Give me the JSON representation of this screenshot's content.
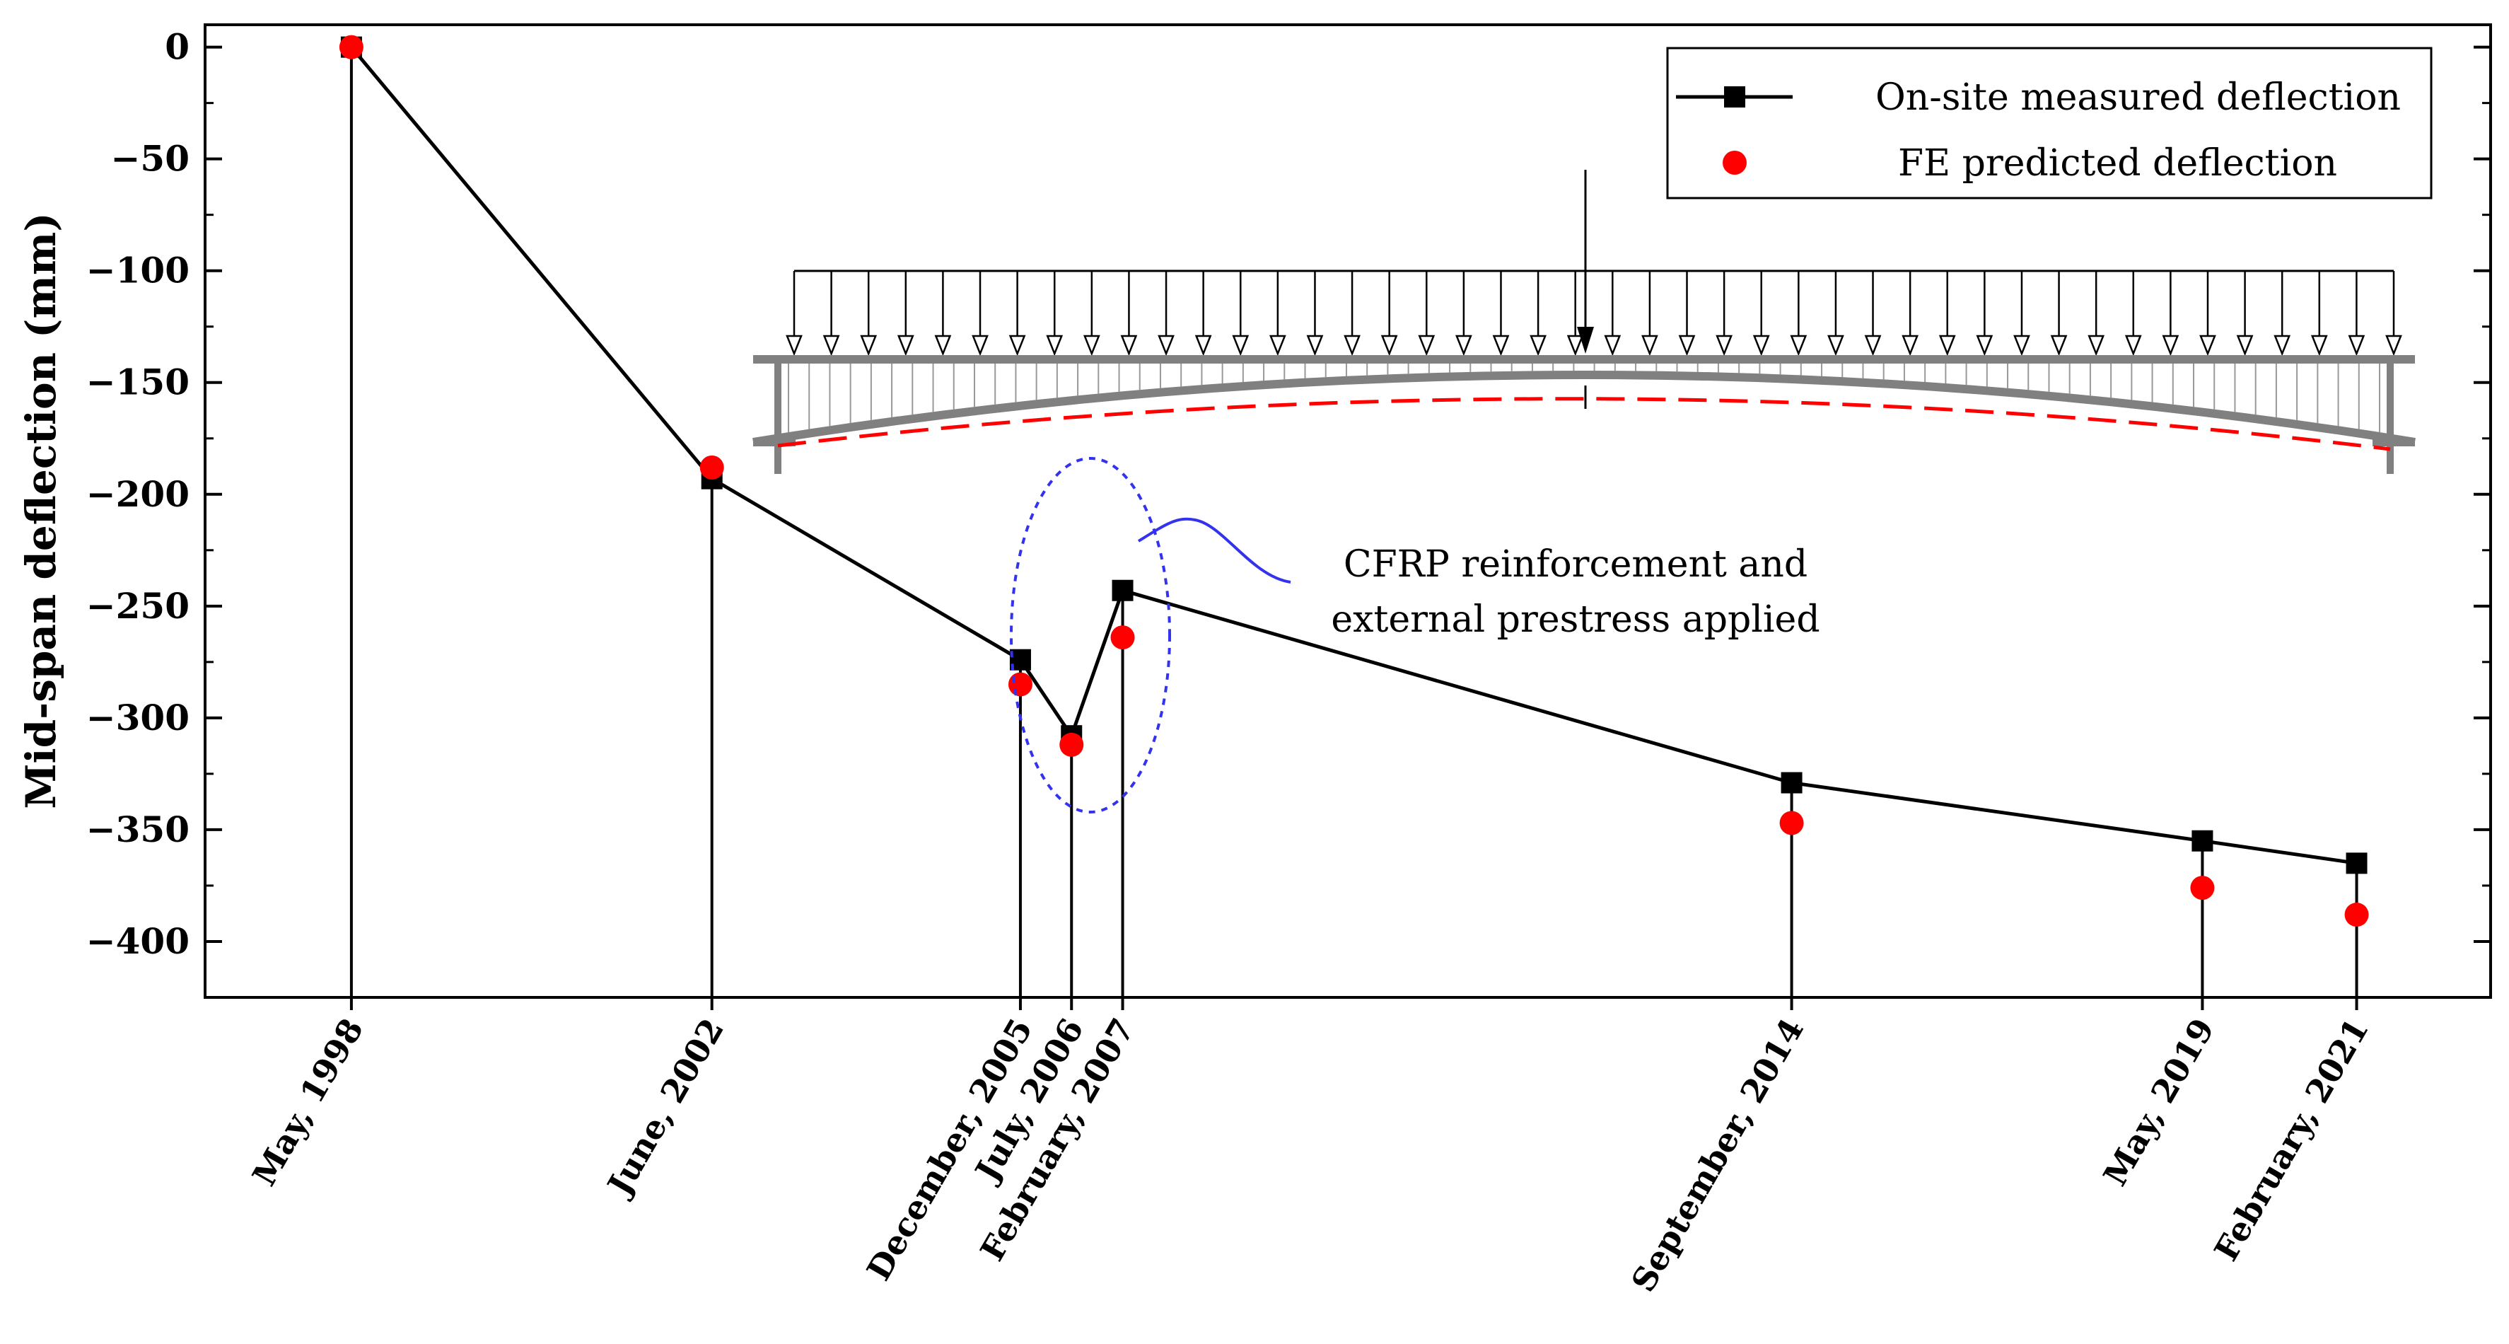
{
  "chart_data": {
    "type": "line",
    "title": "",
    "xlabel": "",
    "ylabel": "Mid-span deflection (mm)",
    "ylim": [
      -425,
      10
    ],
    "yticks": [
      0,
      -50,
      -100,
      -150,
      -200,
      -250,
      -300,
      -350,
      -400
    ],
    "ytick_labels": [
      "0",
      "−50",
      "−100",
      "−150",
      "−200",
      "−250",
      "−300",
      "−350",
      "−400"
    ],
    "x": [
      1998.33,
      2002.42,
      2005.92,
      2006.5,
      2007.08,
      2014.67,
      2019.33,
      2021.08
    ],
    "xlim": [
      1996.67,
      2022.6
    ],
    "categories": [
      "May, 1998",
      "June, 2002",
      "December, 2005",
      "July, 2006",
      "February, 2007",
      "September, 2014",
      "May, 2019",
      "February, 2021"
    ],
    "series": [
      {
        "name": "On-site measured deflection",
        "values": [
          0,
          -193,
          -274,
          -308,
          -243,
          -329,
          -355,
          -365
        ],
        "color": "#000000",
        "marker": "square",
        "line": true
      },
      {
        "name": "FE predicted deflection",
        "values": [
          0,
          -188,
          -285,
          -312,
          -264,
          -347,
          -376,
          -388
        ],
        "color": "#ff0000",
        "marker": "circle",
        "line": false
      }
    ],
    "legend_position": "top-right",
    "annotation": "CFRP reinforcement and external prestress applied",
    "annotation_lines": [
      "CFRP reinforcement and",
      "external prestress applied"
    ],
    "annotation_color": "#3333ee",
    "grid": false
  }
}
